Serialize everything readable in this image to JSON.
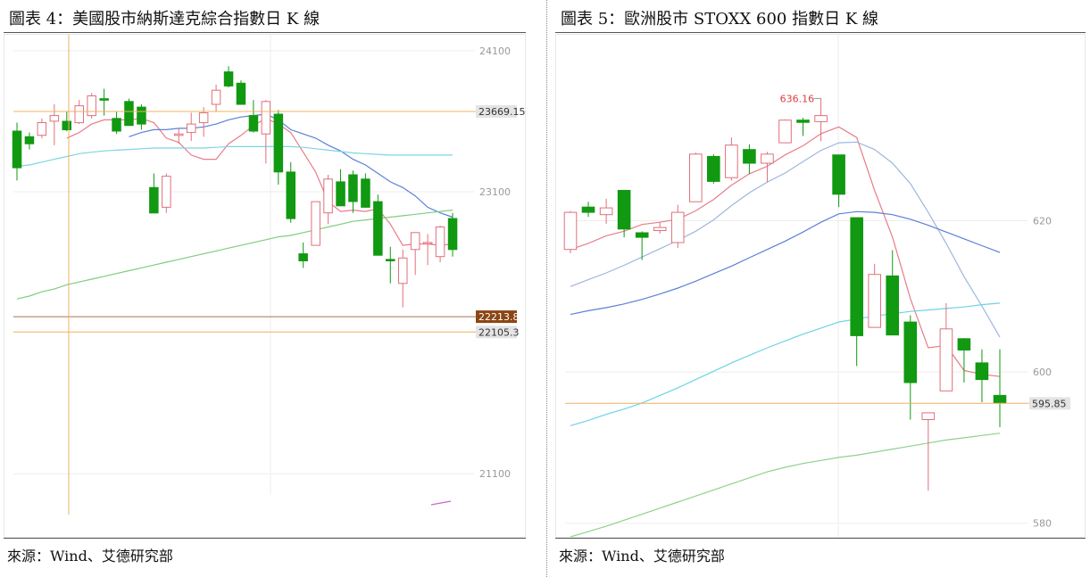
{
  "figure4": {
    "title": "圖表 4：美國股市納斯達克綜合指數日 K 線",
    "source": "來源：Wind、艾德研究部"
  },
  "figure5": {
    "title": "圖表 5：歐洲股市 STOXX 600 指數日 K 線",
    "source": "來源：Wind、艾德研究部"
  },
  "chart_data": [
    {
      "type": "candlestick",
      "title": "圖表 4：美國股市納斯達克綜合指數日 K 線",
      "y_ticks": [
        24100,
        23100,
        21100
      ],
      "y_tick_labels": [
        "24100",
        "23100",
        "21100"
      ],
      "ylim": [
        21000,
        24150
      ],
      "up_color": "#e0707a",
      "down_color": "#119911",
      "price_lines": [
        {
          "label": "23669.15",
          "value": 23669.15,
          "color": "#f0b060",
          "tag_bg": "#e4e4e4",
          "tag_fg": "#333333"
        },
        {
          "label": "22213.8",
          "value": 22213.8,
          "color": "#b07050",
          "tag_bg": "#8b4513",
          "tag_fg": "#ffffff"
        },
        {
          "label": "22105.3",
          "value": 22105.3,
          "color": "#f0b060",
          "tag_bg": "#e4e4e4",
          "tag_fg": "#333333"
        }
      ],
      "candles": [
        {
          "o": 23530,
          "h": 23590,
          "l": 23180,
          "c": 23270
        },
        {
          "o": 23490,
          "h": 23520,
          "l": 23400,
          "c": 23440
        },
        {
          "o": 23500,
          "h": 23620,
          "l": 23480,
          "c": 23590
        },
        {
          "o": 23600,
          "h": 23720,
          "l": 23430,
          "c": 23640
        },
        {
          "o": 23600,
          "h": 23670,
          "l": 23530,
          "c": 23540
        },
        {
          "o": 23590,
          "h": 23750,
          "l": 23580,
          "c": 23710
        },
        {
          "o": 23640,
          "h": 23800,
          "l": 23620,
          "c": 23780
        },
        {
          "o": 23760,
          "h": 23830,
          "l": 23640,
          "c": 23750
        },
        {
          "o": 23620,
          "h": 23670,
          "l": 23510,
          "c": 23530
        },
        {
          "o": 23740,
          "h": 23760,
          "l": 23570,
          "c": 23570
        },
        {
          "o": 23700,
          "h": 23720,
          "l": 23540,
          "c": 23580
        },
        {
          "o": 23130,
          "h": 23230,
          "l": 22950,
          "c": 22950
        },
        {
          "o": 22990,
          "h": 23230,
          "l": 22950,
          "c": 23210
        },
        {
          "o": 23500,
          "h": 23550,
          "l": 23440,
          "c": 23510
        },
        {
          "o": 23520,
          "h": 23660,
          "l": 23460,
          "c": 23580
        },
        {
          "o": 23590,
          "h": 23700,
          "l": 23490,
          "c": 23660
        },
        {
          "o": 23720,
          "h": 23860,
          "l": 23670,
          "c": 23820
        },
        {
          "o": 23950,
          "h": 23990,
          "l": 23840,
          "c": 23850
        },
        {
          "o": 23870,
          "h": 23890,
          "l": 23730,
          "c": 23720
        },
        {
          "o": 23640,
          "h": 23750,
          "l": 23520,
          "c": 23530
        },
        {
          "o": 23510,
          "h": 23750,
          "l": 23300,
          "c": 23740
        },
        {
          "o": 23650,
          "h": 23680,
          "l": 23150,
          "c": 23240
        },
        {
          "o": 23240,
          "h": 23310,
          "l": 22880,
          "c": 22910
        },
        {
          "o": 22660,
          "h": 22740,
          "l": 22560,
          "c": 22610
        },
        {
          "o": 22720,
          "h": 23030,
          "l": 22720,
          "c": 23030
        },
        {
          "o": 22950,
          "h": 23220,
          "l": 22870,
          "c": 23190
        },
        {
          "o": 23170,
          "h": 23260,
          "l": 23000,
          "c": 23000
        },
        {
          "o": 23220,
          "h": 23250,
          "l": 22950,
          "c": 23030
        },
        {
          "o": 23190,
          "h": 23230,
          "l": 22990,
          "c": 22990
        },
        {
          "o": 23030,
          "h": 23080,
          "l": 22660,
          "c": 22650
        },
        {
          "o": 22620,
          "h": 22710,
          "l": 22450,
          "c": 22610
        },
        {
          "o": 22450,
          "h": 22690,
          "l": 22280,
          "c": 22630
        },
        {
          "o": 22690,
          "h": 22810,
          "l": 22510,
          "c": 22810
        },
        {
          "o": 22740,
          "h": 22800,
          "l": 22580,
          "c": 22740
        },
        {
          "o": 22640,
          "h": 22860,
          "l": 22600,
          "c": 22850
        },
        {
          "o": 22910,
          "h": 22950,
          "l": 22640,
          "c": 22690
        }
      ],
      "moving_averages": [
        {
          "name": "MA5",
          "color": "#e87d8a",
          "values": [
            null,
            null,
            null,
            null,
            23480,
            23520,
            23580,
            23610,
            23610,
            23610,
            23620,
            23590,
            23480,
            23450,
            23360,
            23330,
            23330,
            23440,
            23500,
            23570,
            23620,
            23580,
            23520,
            23380,
            23240,
            23030,
            22960,
            22970,
            22960,
            22980,
            22870,
            22720,
            22730,
            22730,
            22720,
            22730
          ]
        },
        {
          "name": "MA10",
          "color": "#5b80d8",
          "values": [
            null,
            null,
            null,
            null,
            null,
            null,
            null,
            null,
            null,
            23490,
            23520,
            23540,
            23540,
            23550,
            23550,
            23560,
            23580,
            23610,
            23630,
            23640,
            23650,
            23610,
            23540,
            23510,
            23480,
            23430,
            23390,
            23330,
            23290,
            23230,
            23170,
            23130,
            23070,
            22990,
            22950,
            22920
          ]
        },
        {
          "name": "MA20",
          "color": "#7fd4e2",
          "values": [
            23280,
            23290,
            23310,
            23330,
            23350,
            23370,
            23380,
            23390,
            23395,
            23400,
            23405,
            23410,
            23410,
            23410,
            23410,
            23410,
            23415,
            23420,
            23420,
            23420,
            23420,
            23420,
            23420,
            23415,
            23405,
            23395,
            23385,
            23375,
            23370,
            23365,
            23360,
            23360,
            23360,
            23360,
            23360,
            23360
          ]
        },
        {
          "name": "MA60",
          "color": "#80cc80",
          "values": [
            22340,
            22360,
            22390,
            22410,
            22440,
            22460,
            22480,
            22500,
            22520,
            22540,
            22560,
            22580,
            22600,
            22620,
            22640,
            22660,
            22680,
            22700,
            22720,
            22740,
            22760,
            22780,
            22790,
            22810,
            22830,
            22850,
            22870,
            22890,
            22900,
            22910,
            22920,
            22930,
            22940,
            22950,
            22960,
            22970
          ]
        }
      ]
    },
    {
      "type": "candlestick",
      "title": "圖表 5：歐洲股市 STOXX 600 指數日 K 線",
      "y_ticks": [
        620,
        600,
        580
      ],
      "y_tick_labels": [
        "620",
        "600",
        "580"
      ],
      "ylim": [
        578.2,
        643.4
      ],
      "up_color": "#e0707a",
      "down_color": "#119911",
      "annotations": [
        {
          "label": "636.16",
          "value": 636.16,
          "color": "#d84040"
        }
      ],
      "price_lines": [
        {
          "label": "595.85",
          "value": 595.85,
          "color": "#f0b060",
          "tag_bg": "#e4e4e4",
          "tag_fg": "#333333"
        }
      ],
      "candles": [
        {
          "o": 616.2,
          "h": 621.3,
          "l": 615.7,
          "c": 621.1
        },
        {
          "o": 621.8,
          "h": 622.5,
          "l": 620.5,
          "c": 621.1
        },
        {
          "o": 620.8,
          "h": 622.9,
          "l": 619.6,
          "c": 621.7
        },
        {
          "o": 624.0,
          "h": 624.0,
          "l": 617.8,
          "c": 618.9
        },
        {
          "o": 618.4,
          "h": 618.6,
          "l": 614.8,
          "c": 617.8
        },
        {
          "o": 618.7,
          "h": 619.8,
          "l": 618.3,
          "c": 619.1
        },
        {
          "o": 617.1,
          "h": 622.1,
          "l": 616.4,
          "c": 621.1
        },
        {
          "o": 622.5,
          "h": 629.0,
          "l": 622.5,
          "c": 628.8
        },
        {
          "o": 628.5,
          "h": 628.8,
          "l": 624.9,
          "c": 625.2
        },
        {
          "o": 625.7,
          "h": 631.0,
          "l": 625.3,
          "c": 630.0
        },
        {
          "o": 629.4,
          "h": 630.1,
          "l": 626.2,
          "c": 627.6
        },
        {
          "o": 627.6,
          "h": 629.1,
          "l": 625.1,
          "c": 628.8
        },
        {
          "o": 630.3,
          "h": 633.4,
          "l": 630.3,
          "c": 633.3
        },
        {
          "o": 633.3,
          "h": 633.6,
          "l": 631.2,
          "c": 633.0
        },
        {
          "o": 633.1,
          "h": 636.2,
          "l": 630.5,
          "c": 633.9
        },
        {
          "o": 628.7,
          "h": 628.7,
          "l": 621.8,
          "c": 623.5
        },
        {
          "o": 620.4,
          "h": 620.4,
          "l": 600.8,
          "c": 604.8
        },
        {
          "o": 605.9,
          "h": 614.3,
          "l": 605.9,
          "c": 612.9
        },
        {
          "o": 612.7,
          "h": 616.1,
          "l": 604.9,
          "c": 604.9
        },
        {
          "o": 606.6,
          "h": 607.5,
          "l": 593.7,
          "c": 598.6
        },
        {
          "o": 593.7,
          "h": 594.6,
          "l": 584.3,
          "c": 594.6
        },
        {
          "o": 597.5,
          "h": 609.1,
          "l": 597.5,
          "c": 605.7
        },
        {
          "o": 604.4,
          "h": 604.5,
          "l": 598.6,
          "c": 602.9
        },
        {
          "o": 601.2,
          "h": 603.0,
          "l": 596.0,
          "c": 599.0
        },
        {
          "o": 596.9,
          "h": 603.0,
          "l": 592.7,
          "c": 595.9
        }
      ],
      "moving_averages": [
        {
          "name": "MA5",
          "color": "#e87d8a",
          "values": [
            616.2,
            617.0,
            618.0,
            618.6,
            619.5,
            619.8,
            620.2,
            621.3,
            622.8,
            624.7,
            626.2,
            627.2,
            628.7,
            629.9,
            631.5,
            632.4,
            631.0,
            624.0,
            617.8,
            609.7,
            603.2,
            603.5,
            600.2,
            599.7,
            599.4
          ]
        },
        {
          "name": "MA10",
          "color": "#9fb6e0",
          "values": [
            611.3,
            612.2,
            613.1,
            614.1,
            615.2,
            616.3,
            617.4,
            618.6,
            620.1,
            622.0,
            623.7,
            625.1,
            626.3,
            627.8,
            629.3,
            630.3,
            630.4,
            629.4,
            627.6,
            624.9,
            621.1,
            617.0,
            612.6,
            608.7,
            604.6
          ]
        },
        {
          "name": "MA20",
          "color": "#5b80d8",
          "values": [
            607.6,
            608.1,
            608.5,
            609.0,
            609.6,
            610.3,
            611.1,
            612.0,
            613.0,
            614.0,
            615.1,
            616.2,
            617.3,
            618.5,
            619.8,
            620.9,
            621.2,
            621.1,
            620.8,
            620.2,
            619.4,
            618.5,
            617.6,
            616.7,
            615.8
          ]
        },
        {
          "name": "MA60",
          "color": "#6dd3e6",
          "values": [
            592.9,
            593.6,
            594.4,
            595.1,
            595.9,
            596.9,
            597.9,
            599.0,
            600.1,
            601.2,
            602.2,
            603.2,
            604.1,
            605.0,
            605.8,
            606.6,
            607.0,
            607.4,
            607.7,
            608.0,
            608.2,
            608.4,
            608.6,
            608.9,
            609.1
          ]
        },
        {
          "name": "MA120",
          "color": "#8fd18f",
          "values": [
            578.2,
            578.9,
            579.6,
            580.4,
            581.2,
            582.0,
            582.8,
            583.6,
            584.4,
            585.2,
            586.0,
            586.8,
            587.4,
            587.9,
            588.3,
            588.7,
            589.0,
            589.4,
            589.8,
            590.2,
            590.6,
            591.0,
            591.3,
            591.6,
            591.9
          ]
        }
      ]
    }
  ]
}
